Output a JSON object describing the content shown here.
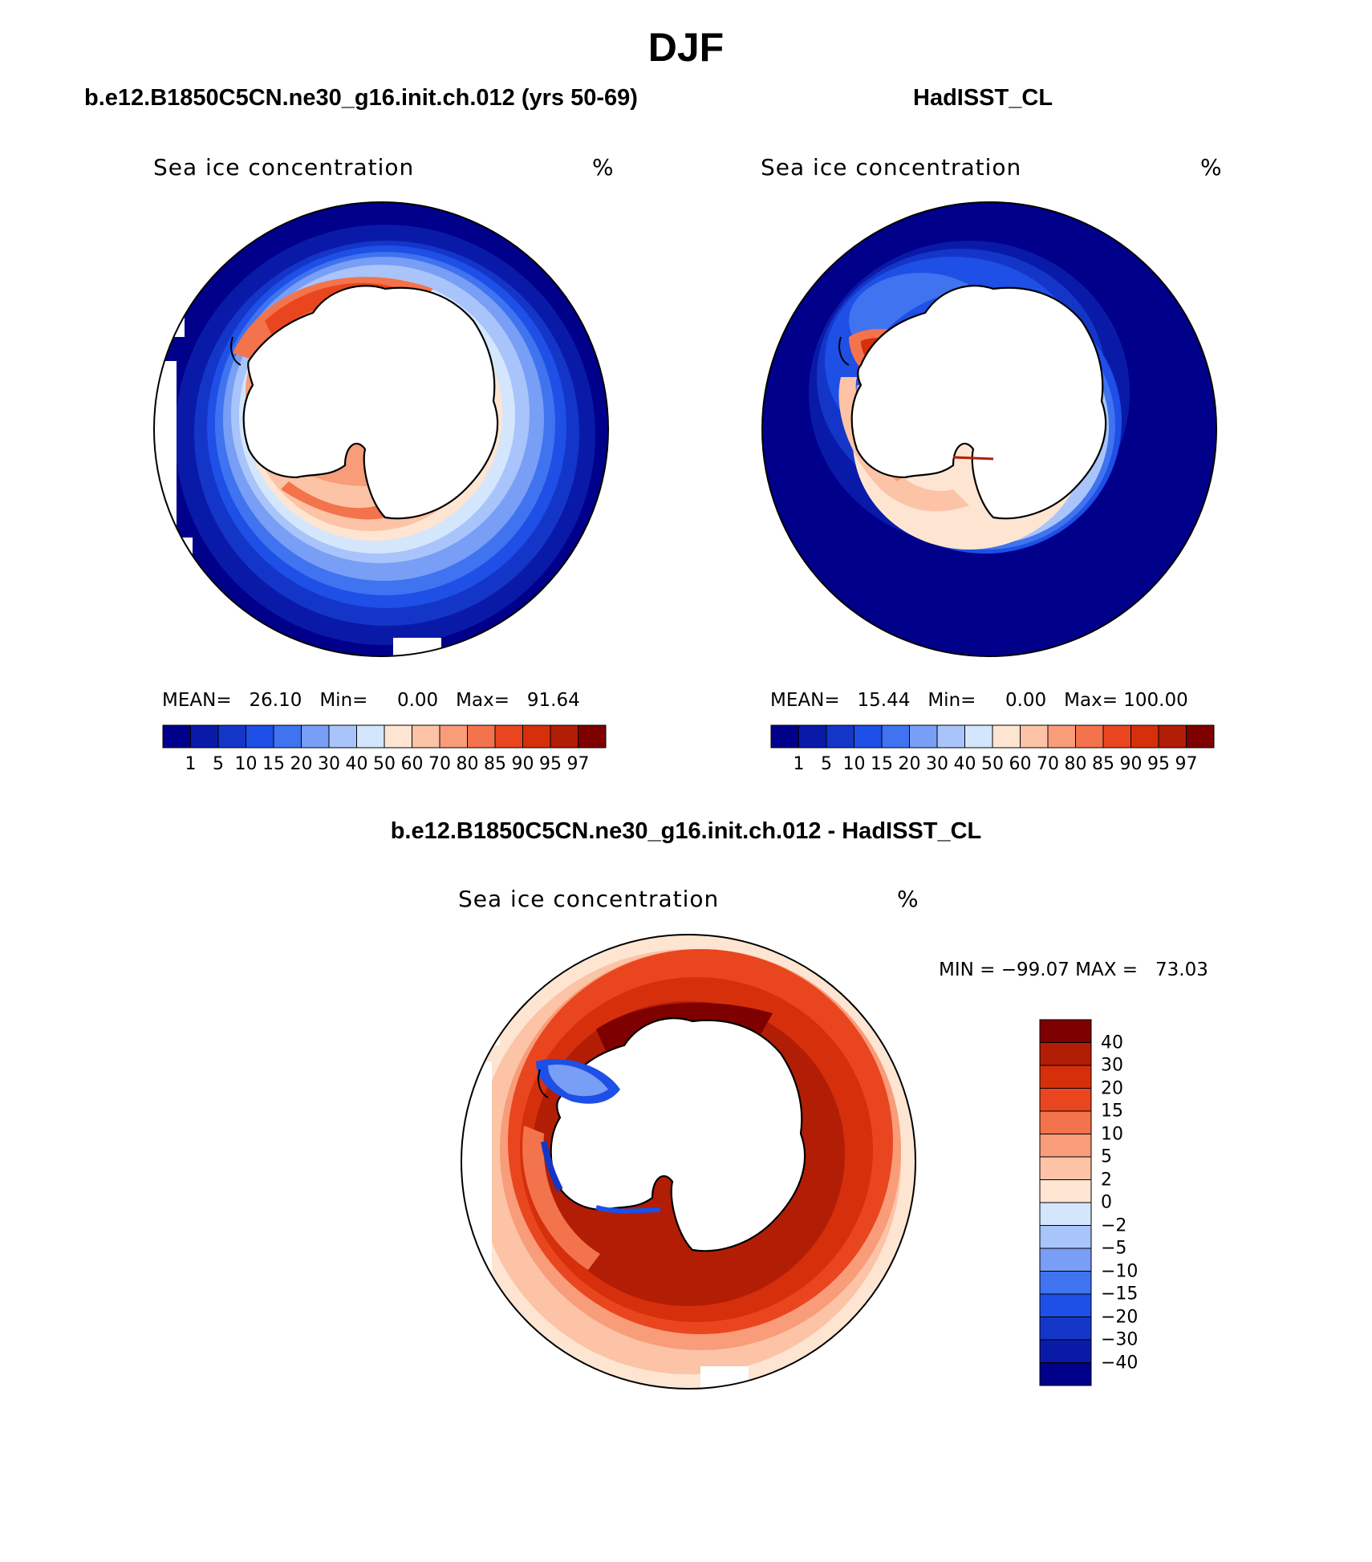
{
  "figure": {
    "title": "DJF"
  },
  "panels": [
    {
      "id": "model",
      "title": "b.e12.B1850C5CN.ne30_g16.init.ch.012 (yrs 50-69)",
      "variable_label": "Sea ice concentration",
      "units_label": "%",
      "stats": {
        "mean_label": "MEAN=",
        "mean": "26.10",
        "min_label": "Min=",
        "min": "0.00",
        "max_label": "Max=",
        "max": "91.64"
      }
    },
    {
      "id": "obs",
      "title": "HadISST_CL",
      "variable_label": "Sea ice concentration",
      "units_label": "%",
      "stats": {
        "mean_label": "MEAN=",
        "mean": "15.44",
        "min_label": "Min=",
        "min": "0.00",
        "max_label": "Max=",
        "max": "100.00"
      }
    },
    {
      "id": "diff",
      "title": "b.e12.B1850C5CN.ne30_g16.init.ch.012 - HadISST_CL",
      "variable_label": "Sea ice concentration",
      "units_label": "%",
      "minmax_text": "MIN = −99.07 MAX =   73.03"
    }
  ],
  "colorbars": {
    "field": {
      "labels": [
        "1",
        "5",
        "10",
        "15",
        "20",
        "30",
        "40",
        "50",
        "60",
        "70",
        "80",
        "85",
        "90",
        "95",
        "97"
      ],
      "colors": [
        "#00008b",
        "#0a1aa8",
        "#1436c8",
        "#1e4fe6",
        "#3f73ef",
        "#789ef5",
        "#a8c4fa",
        "#d4e6fc",
        "#fde5d2",
        "#fcc3a6",
        "#f89c7a",
        "#f3734c",
        "#e9461f",
        "#d52f0b",
        "#b21d06",
        "#7e0000"
      ]
    },
    "diff": {
      "labels": [
        "40",
        "30",
        "20",
        "15",
        "10",
        "5",
        "2",
        "0",
        "−2",
        "−5",
        "−10",
        "−15",
        "−20",
        "−30",
        "−40"
      ],
      "colors": [
        "#7e0000",
        "#b21d06",
        "#d52f0b",
        "#e9461f",
        "#f3734c",
        "#f89c7a",
        "#fcc3a6",
        "#fde5d2",
        "#d4e6fc",
        "#a8c4fa",
        "#789ef5",
        "#3f73ef",
        "#1e4fe6",
        "#1436c8",
        "#0a1aa8",
        "#00008b"
      ]
    }
  }
}
